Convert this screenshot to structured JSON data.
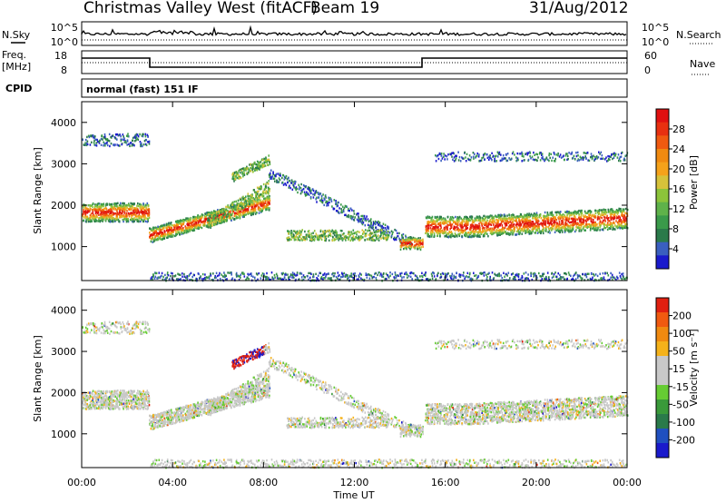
{
  "header": {
    "station": "Christmas Valley West (fitACF)",
    "beam": "Beam 19",
    "date": "31/Aug/2012"
  },
  "left_labels": {
    "nsky": "N.Sky",
    "freq": "Freq.",
    "freq_unit": "[MHz]",
    "cpid": "CPID"
  },
  "right_labels": {
    "nsearch": "N.Search",
    "nave": "Nave"
  },
  "cpid_text": "normal (fast) 151 IF",
  "noise_axis": {
    "left_top": "10^5",
    "left_bottom": "10^0",
    "right_top": "10^5",
    "right_bottom": "10^0"
  },
  "freq_axis": {
    "left_top": "18",
    "left_bottom": "8",
    "right_top": "60",
    "right_bottom": "0"
  },
  "colors": {
    "frame": "#000000",
    "power_scale": [
      "#1a1acc",
      "#3a5fbf",
      "#2a7a4a",
      "#3a9a4a",
      "#5fb24a",
      "#8cc43a",
      "#d6c23a",
      "#f5a21a",
      "#f08a10",
      "#f05a10",
      "#e83010",
      "#e01010"
    ],
    "velocity_scale": [
      "#1a1acc",
      "#2050c0",
      "#2a7a4a",
      "#3a9a3a",
      "#66cc33",
      "#c8c8c8",
      "#c8c8c8",
      "#f5b21a",
      "#f08a10",
      "#f05a10",
      "#e02010"
    ]
  },
  "chart_data": [
    {
      "type": "heatmap",
      "panel": "power",
      "xlabel": "Time UT",
      "ylabel": "Slant Range [km]",
      "x_ticks": [
        "00:00",
        "04:00",
        "08:00",
        "12:00",
        "16:00",
        "20:00",
        "00:00"
      ],
      "y_ticks": [
        "1000",
        "2000",
        "3000",
        "4000"
      ],
      "xlim_hours": [
        0,
        24
      ],
      "ylim_km": [
        180,
        4500
      ],
      "colorbar": {
        "label": "Power [dB]",
        "ticks": [
          "28",
          "24",
          "20",
          "16",
          "12",
          "8",
          "4"
        ],
        "range": [
          0,
          30
        ]
      }
    },
    {
      "type": "heatmap",
      "panel": "velocity",
      "xlabel": "Time UT",
      "ylabel": "Slant Range [km]",
      "x_ticks": [
        "00:00",
        "04:00",
        "08:00",
        "12:00",
        "16:00",
        "20:00",
        "00:00"
      ],
      "y_ticks": [
        "1000",
        "2000",
        "3000",
        "4000"
      ],
      "xlim_hours": [
        0,
        24
      ],
      "ylim_km": [
        180,
        4500
      ],
      "colorbar": {
        "label": "Velocity [m s⁻¹]",
        "ticks": [
          "200",
          "100",
          "50",
          "15",
          "-15",
          "-50",
          "-100",
          "-200"
        ],
        "range": [
          -250,
          250
        ]
      }
    }
  ]
}
